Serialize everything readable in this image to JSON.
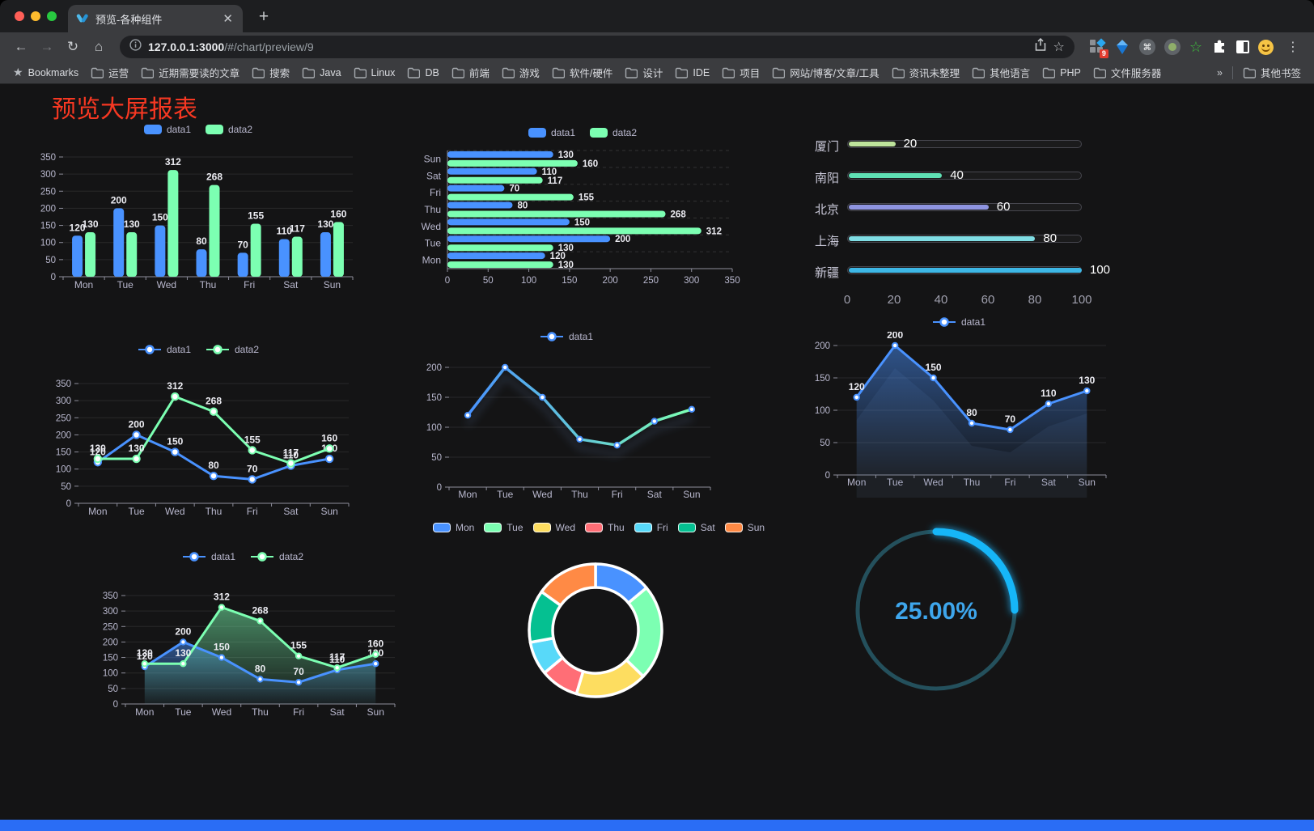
{
  "window": {
    "traffic_colors": [
      "#ff5f57",
      "#febc2e",
      "#28c840"
    ]
  },
  "browser": {
    "tab_title": "预览-各种组件",
    "url_host": "127.0.0.1:3000",
    "url_path": "/#/chart/preview/9",
    "extension_badge": "9"
  },
  "bookmarks": {
    "label": "Bookmarks",
    "folders": [
      "运营",
      "近期需要读的文章",
      "搜索",
      "Java",
      "Linux",
      "DB",
      "前端",
      "游戏",
      "软件/硬件",
      "设计",
      "IDE",
      "项目",
      "网站/博客/文章/工具",
      "资讯未整理",
      "其他语言",
      "PHP",
      "文件服务器"
    ],
    "overflow": "»",
    "other": "其他书签"
  },
  "page": {
    "title": "预览大屏报表"
  },
  "chart_data": [
    {
      "id": "bar",
      "type": "bar",
      "title": "",
      "categories": [
        "Mon",
        "Tue",
        "Wed",
        "Thu",
        "Fri",
        "Sat",
        "Sun"
      ],
      "series": [
        {
          "name": "data1",
          "color": "#4992ff",
          "values": [
            120,
            200,
            150,
            80,
            70,
            110,
            130
          ]
        },
        {
          "name": "data2",
          "color": "#7cffb2",
          "values": [
            130,
            130,
            312,
            268,
            155,
            117,
            160
          ]
        }
      ],
      "ylim": [
        0,
        350
      ],
      "ystep": 50,
      "labels": true
    },
    {
      "id": "hbar",
      "type": "hbar",
      "title": "",
      "categories": [
        "Mon",
        "Tue",
        "Wed",
        "Thu",
        "Fri",
        "Sat",
        "Sun"
      ],
      "series": [
        {
          "name": "data1",
          "color": "#4992ff",
          "values": [
            120,
            200,
            150,
            80,
            70,
            110,
            130
          ]
        },
        {
          "name": "data2",
          "color": "#7cffb2",
          "values": [
            130,
            130,
            312,
            268,
            155,
            117,
            160
          ]
        }
      ],
      "xlim": [
        0,
        350
      ],
      "xstep": 50,
      "labels": true
    },
    {
      "id": "progress",
      "type": "progress",
      "max": 100,
      "axis_ticks": [
        0,
        20,
        40,
        60,
        80,
        100
      ],
      "items": [
        {
          "label": "厦门",
          "value": 20,
          "color": "#bee49b"
        },
        {
          "label": "南阳",
          "value": 40,
          "color": "#5fe0b4"
        },
        {
          "label": "北京",
          "value": 60,
          "color": "#8e94e0"
        },
        {
          "label": "上海",
          "value": 80,
          "color": "#7fdde4"
        },
        {
          "label": "新疆",
          "value": 100,
          "color": "#3db7e6"
        }
      ]
    },
    {
      "id": "line2",
      "type": "line",
      "categories": [
        "Mon",
        "Tue",
        "Wed",
        "Thu",
        "Fri",
        "Sat",
        "Sun"
      ],
      "series": [
        {
          "name": "data1",
          "color": "#4992ff",
          "values": [
            120,
            200,
            150,
            80,
            70,
            110,
            130
          ]
        },
        {
          "name": "data2",
          "color": "#7cffb2",
          "values": [
            130,
            130,
            312,
            268,
            155,
            117,
            160
          ]
        }
      ],
      "ylim": [
        0,
        350
      ],
      "ystep": 50,
      "labels": true
    },
    {
      "id": "lineGrad",
      "type": "line",
      "categories": [
        "Mon",
        "Tue",
        "Wed",
        "Thu",
        "Fri",
        "Sat",
        "Sun"
      ],
      "series": [
        {
          "name": "data1",
          "gradient": [
            "#4992ff",
            "#7cffb2"
          ],
          "color": "#4992ff",
          "values": [
            120,
            200,
            150,
            80,
            70,
            110,
            130
          ]
        }
      ],
      "ylim": [
        0,
        200
      ],
      "ystep": 50,
      "labels": false,
      "shadow": true
    },
    {
      "id": "area1",
      "type": "line",
      "categories": [
        "Mon",
        "Tue",
        "Wed",
        "Thu",
        "Fri",
        "Sat",
        "Sun"
      ],
      "series": [
        {
          "name": "data1",
          "color": "#4992ff",
          "area": true,
          "values": [
            120,
            200,
            150,
            80,
            70,
            110,
            130
          ]
        }
      ],
      "ylim": [
        0,
        200
      ],
      "ystep": 50,
      "labels": true,
      "areaShadow": true
    },
    {
      "id": "area2",
      "type": "line",
      "categories": [
        "Mon",
        "Tue",
        "Wed",
        "Thu",
        "Fri",
        "Sat",
        "Sun"
      ],
      "series": [
        {
          "name": "data1",
          "color": "#4992ff",
          "area": true,
          "values": [
            120,
            200,
            150,
            80,
            70,
            110,
            130
          ]
        },
        {
          "name": "data2",
          "color": "#7cffb2",
          "area": true,
          "values": [
            130,
            130,
            312,
            268,
            155,
            117,
            160
          ]
        }
      ],
      "ylim": [
        0,
        350
      ],
      "ystep": 50,
      "labels": true
    },
    {
      "id": "pie",
      "type": "pie",
      "inner_radius_ratio": 0.65,
      "items": [
        {
          "label": "Mon",
          "value": 120,
          "color": "#4992ff"
        },
        {
          "label": "Tue",
          "value": 200,
          "color": "#7cffb2"
        },
        {
          "label": "Wed",
          "value": 150,
          "color": "#fddd60"
        },
        {
          "label": "Thu",
          "value": 80,
          "color": "#ff6e76"
        },
        {
          "label": "Fri",
          "value": 70,
          "color": "#58d9f9"
        },
        {
          "label": "Sat",
          "value": 110,
          "color": "#05c091"
        },
        {
          "label": "Sun",
          "value": 130,
          "color": "#ff8a45"
        }
      ]
    },
    {
      "id": "gauge",
      "type": "gauge",
      "value": 25,
      "display": "25.00%",
      "color": "#18b6f8",
      "track_color": "#24505c",
      "text_color": "#3ea6ec"
    }
  ]
}
